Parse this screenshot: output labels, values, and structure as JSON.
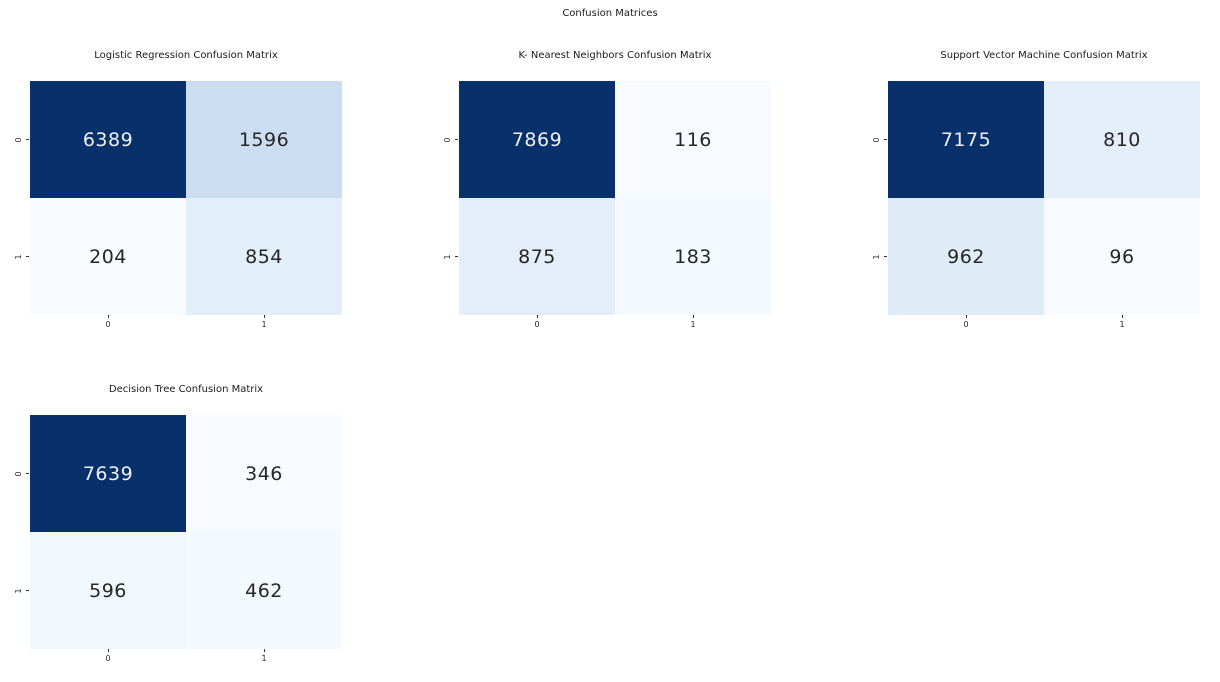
{
  "figure_title": "Confusion Matrices",
  "chart_data": [
    {
      "type": "heatmap",
      "title": "Logistic Regression Confusion Matrix",
      "colormap": "Blues",
      "x_tick_labels": [
        "0",
        "1"
      ],
      "y_tick_labels": [
        "0",
        "1"
      ],
      "matrix": [
        [
          6389,
          1596
        ],
        [
          204,
          854
        ]
      ]
    },
    {
      "type": "heatmap",
      "title": "K- Nearest Neighbors Confusion Matrix",
      "colormap": "Blues",
      "x_tick_labels": [
        "0",
        "1"
      ],
      "y_tick_labels": [
        "0",
        "1"
      ],
      "matrix": [
        [
          7869,
          116
        ],
        [
          875,
          183
        ]
      ]
    },
    {
      "type": "heatmap",
      "title": "Support Vector Machine Confusion Matrix",
      "colormap": "Blues",
      "x_tick_labels": [
        "0",
        "1"
      ],
      "y_tick_labels": [
        "0",
        "1"
      ],
      "matrix": [
        [
          7175,
          810
        ],
        [
          962,
          96
        ]
      ]
    },
    {
      "type": "heatmap",
      "title": "Decision Tree Confusion Matrix",
      "colormap": "Blues",
      "x_tick_labels": [
        "0",
        "1"
      ],
      "y_tick_labels": [
        "0",
        "1"
      ],
      "matrix": [
        [
          7639,
          346
        ],
        [
          596,
          462
        ]
      ]
    }
  ],
  "style": {
    "background": "#ffffff",
    "colormap_stops": [
      "#f7fbff",
      "#deebf7",
      "#c6dbef",
      "#9ecae1",
      "#6baed6",
      "#4292c6",
      "#2171b5",
      "#08519c",
      "#08306b"
    ],
    "dark_text": "#262626",
    "light_text": "#f0f0f0",
    "tick_color": "#333333"
  }
}
